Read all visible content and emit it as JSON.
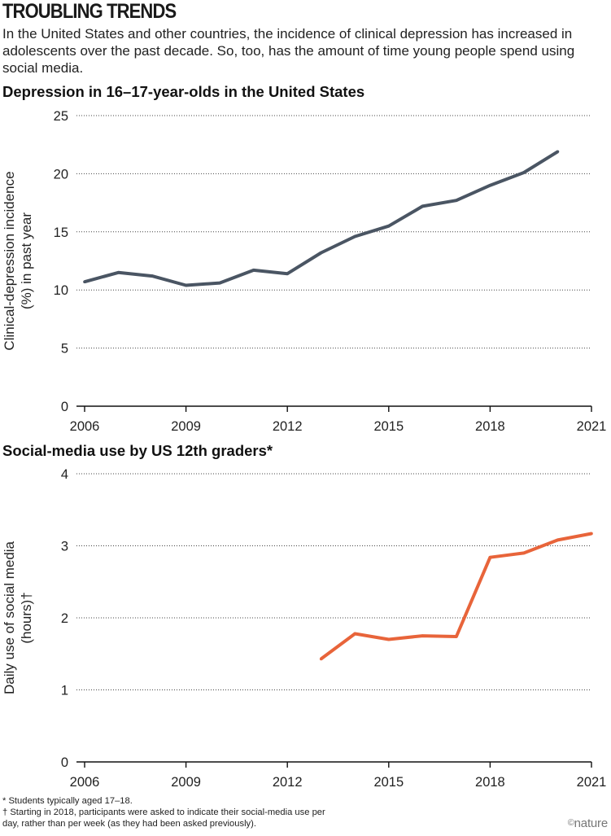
{
  "header": {
    "title": "TROUBLING TRENDS",
    "intro": "In the United States and other countries, the incidence of clinical depression has increased in adolescents over the past decade. So, too, has the amount of time young people spend using social media."
  },
  "chart_data": [
    {
      "type": "line",
      "title": "Depression in 16–17-year-olds in the United States",
      "xlabel": "",
      "ylabel_lines": [
        "Clinical-depression incidence",
        "(%) in past year"
      ],
      "xlim": [
        2006,
        2021
      ],
      "ylim": [
        0,
        25
      ],
      "xticks": [
        2006,
        2009,
        2012,
        2015,
        2018,
        2021
      ],
      "yticks": [
        0,
        5,
        10,
        15,
        20,
        25
      ],
      "grid": "horizontal dotted",
      "color": "#4a5563",
      "series": [
        {
          "x": [
            2006,
            2007,
            2008,
            2009,
            2010,
            2011,
            2012,
            2013,
            2014,
            2015,
            2016,
            2017,
            2018,
            2019,
            2020
          ],
          "values": [
            10.7,
            11.5,
            11.2,
            10.4,
            10.6,
            11.7,
            11.4,
            13.2,
            14.6,
            15.5,
            17.2,
            17.7,
            19.0,
            20.1,
            21.9
          ]
        }
      ]
    },
    {
      "type": "line",
      "title": "Social-media use by US 12th graders*",
      "xlabel": "",
      "ylabel_lines": [
        "Daily use of social media",
        "(hours)†"
      ],
      "xlim": [
        2006,
        2021
      ],
      "ylim": [
        0,
        4
      ],
      "xticks": [
        2006,
        2009,
        2012,
        2015,
        2018,
        2021
      ],
      "yticks": [
        0,
        1,
        2,
        3,
        4
      ],
      "grid": "horizontal dotted",
      "color": "#e8643a",
      "series": [
        {
          "x": [
            2013,
            2014,
            2015,
            2016,
            2017,
            2018,
            2019,
            2020,
            2021
          ],
          "values": [
            1.43,
            1.78,
            1.7,
            1.75,
            1.74,
            2.84,
            2.9,
            3.08,
            3.17
          ]
        }
      ]
    }
  ],
  "footnotes": [
    "* Students typically aged 17–18.",
    "† Starting in 2018, participants were asked to indicate their social-media use per",
    "day, rather than per week (as they had been asked previously)."
  ],
  "logo": {
    "symbol": "©",
    "text": "nature"
  }
}
